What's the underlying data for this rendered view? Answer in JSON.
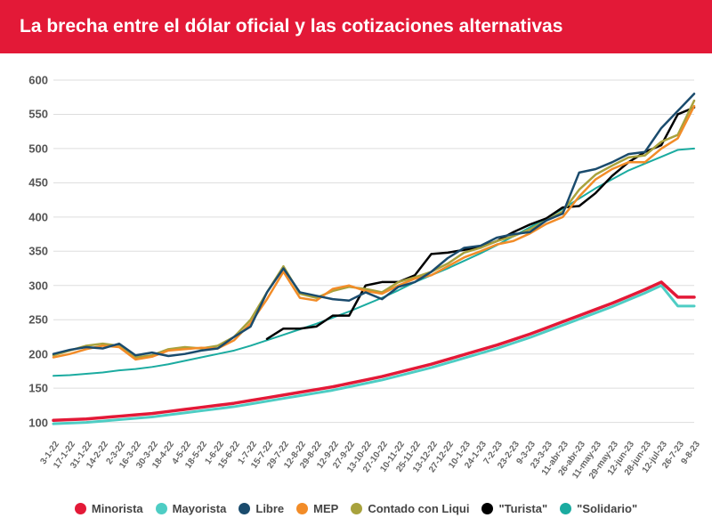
{
  "title": "La brecha entre el dólar oficial y las cotizaciones alternativas",
  "title_bg": "#e31937",
  "title_color": "#ffffff",
  "chart": {
    "type": "line",
    "background": "#ffffff",
    "grid_color": "#dddddd",
    "ylim": [
      80,
      600
    ],
    "yticks": [
      100,
      150,
      200,
      250,
      300,
      350,
      400,
      450,
      500,
      550,
      600
    ],
    "xticks": [
      "3-1-22",
      "17-1-22",
      "31-1-22",
      "14-2-22",
      "2-3-22",
      "16-3-22",
      "30-3-22",
      "18-4-22",
      "4-5-22",
      "18-5-22",
      "1-6-22",
      "15-6-22",
      "1-7-22",
      "15-7-22",
      "29-7-22",
      "12-8-22",
      "29-8-22",
      "12-9-22",
      "27-9-22",
      "13-10-22",
      "27-10-22",
      "10-11-22",
      "25-11-22",
      "13-12-22",
      "27-12-22",
      "10-1-23",
      "24-1-23",
      "7-2-23",
      "23-2-23",
      "9-3-23",
      "23-3-23",
      "11-abr-23",
      "26-abr-23",
      "11-may-23",
      "29-may-23",
      "12-jun-23",
      "28-jun-23",
      "12-jul-23",
      "26-7-23",
      "9-8-23"
    ],
    "series": {
      "minorista": {
        "label": "Minorista",
        "color": "#e31937",
        "width": 3.5,
        "values": [
          103,
          104,
          105,
          107,
          109,
          111,
          113,
          116,
          119,
          122,
          125,
          128,
          132,
          136,
          140,
          144,
          148,
          152,
          157,
          162,
          167,
          173,
          179,
          185,
          192,
          199,
          206,
          213,
          221,
          229,
          238,
          247,
          256,
          265,
          274,
          284,
          294,
          305,
          283,
          283
        ]
      },
      "mayorista": {
        "label": "Mayorista",
        "color": "#4ecdc4",
        "width": 3,
        "values": [
          98,
          99,
          100,
          102,
          104,
          106,
          108,
          111,
          114,
          117,
          120,
          123,
          127,
          131,
          135,
          139,
          143,
          147,
          152,
          157,
          162,
          168,
          174,
          180,
          187,
          194,
          201,
          208,
          216,
          224,
          233,
          242,
          251,
          260,
          269,
          279,
          289,
          300,
          270,
          270
        ]
      },
      "libre": {
        "label": "Libre",
        "color": "#1a4b6d",
        "width": 2.5,
        "values": [
          200,
          206,
          210,
          208,
          215,
          198,
          202,
          197,
          200,
          205,
          208,
          225,
          240,
          290,
          325,
          290,
          285,
          280,
          278,
          290,
          280,
          298,
          305,
          320,
          340,
          355,
          358,
          370,
          375,
          378,
          395,
          405,
          465,
          470,
          480,
          492,
          495,
          530,
          555,
          580
        ]
      },
      "mep": {
        "label": "MEP",
        "color": "#f28c28",
        "width": 2.5,
        "values": [
          195,
          200,
          207,
          212,
          210,
          192,
          196,
          205,
          207,
          209,
          208,
          220,
          245,
          280,
          320,
          282,
          278,
          295,
          300,
          292,
          288,
          300,
          310,
          315,
          328,
          341,
          350,
          360,
          365,
          376,
          390,
          400,
          430,
          455,
          470,
          480,
          480,
          500,
          515,
          562
        ]
      },
      "ccl": {
        "label": "Contado con Liqui",
        "color": "#a8a23d",
        "width": 2.5,
        "values": [
          198,
          205,
          212,
          215,
          212,
          195,
          198,
          207,
          210,
          208,
          212,
          225,
          250,
          290,
          328,
          288,
          282,
          292,
          298,
          295,
          290,
          305,
          312,
          320,
          332,
          348,
          355,
          365,
          372,
          382,
          395,
          408,
          440,
          462,
          475,
          487,
          490,
          510,
          520,
          570
        ]
      },
      "turista": {
        "label": "\"Turista\"",
        "color": "#000000",
        "width": 2.5,
        "values": [
          null,
          null,
          null,
          null,
          null,
          null,
          null,
          null,
          null,
          null,
          null,
          null,
          null,
          222,
          237,
          237,
          240,
          256,
          256,
          300,
          305,
          305,
          315,
          346,
          348,
          352,
          356,
          365,
          378,
          389,
          398,
          414,
          416,
          435,
          460,
          480,
          495,
          505,
          550,
          560
        ]
      },
      "solidario": {
        "label": "\"Solidario\"",
        "color": "#1baba0",
        "width": 2,
        "values": [
          168,
          169,
          171,
          173,
          176,
          178,
          181,
          185,
          190,
          195,
          200,
          205,
          212,
          220,
          228,
          236,
          244,
          253,
          262,
          272,
          282,
          293,
          305,
          315,
          325,
          336,
          347,
          359,
          372,
          385,
          398,
          412,
          427,
          442,
          455,
          468,
          478,
          488,
          498,
          500
        ]
      }
    },
    "legend_order": [
      "minorista",
      "mayorista",
      "libre",
      "mep",
      "ccl",
      "turista",
      "solidario"
    ]
  }
}
